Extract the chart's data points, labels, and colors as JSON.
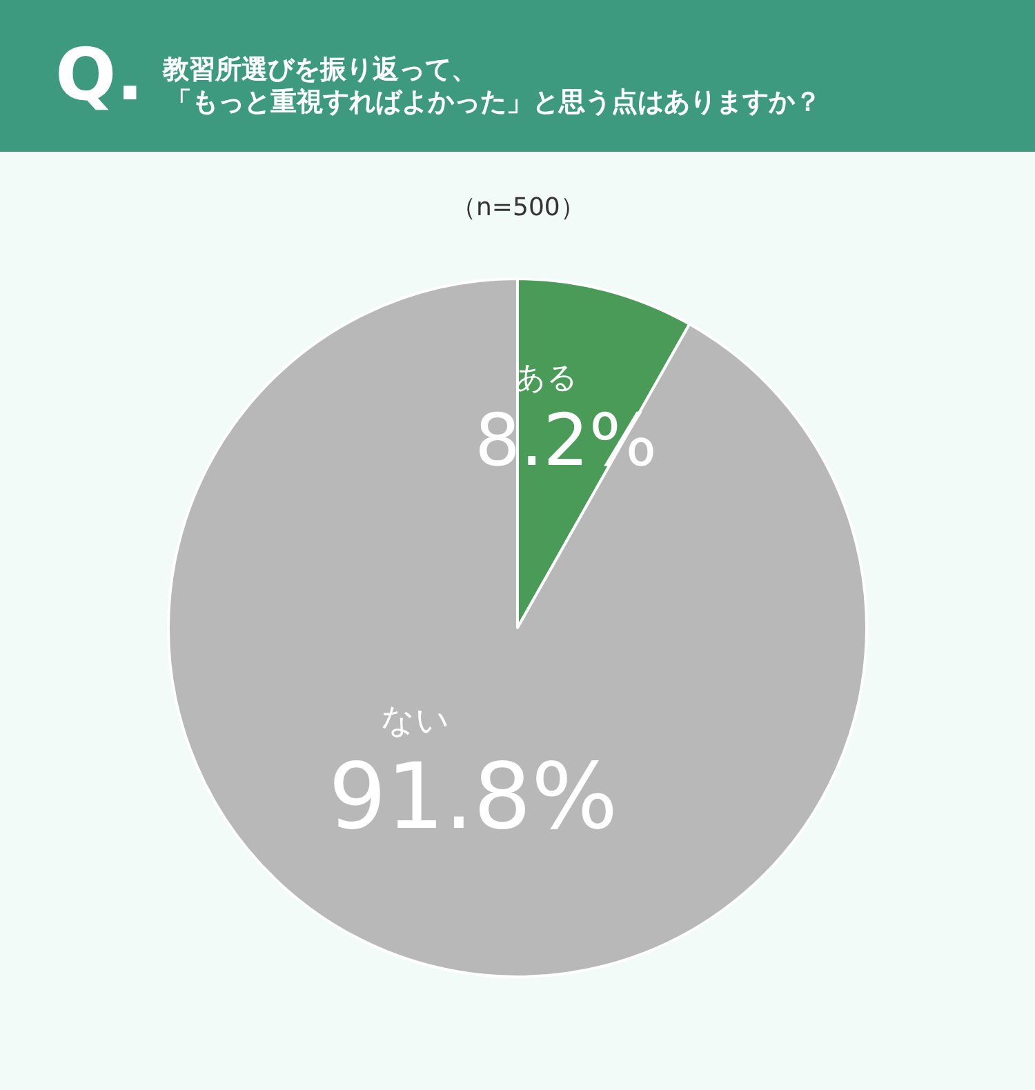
{
  "chart_data": {
    "type": "pie",
    "title": "教習所選びを振り返って、",
    "subtitle": "（n=500）",
    "annotations": [
      "Q.",
      "「もっと重視すればよかった」と思う点はありますか？"
    ],
    "categories": [
      "ある",
      "ない"
    ],
    "values": [
      8.2,
      91.8
    ],
    "value_labels": [
      "8.2%",
      "91.8%"
    ],
    "colors": [
      "#4a9a58",
      "#b8b8b8"
    ]
  }
}
